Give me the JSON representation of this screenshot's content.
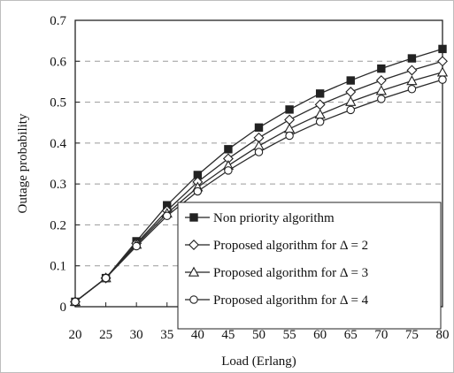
{
  "chart_data": {
    "type": "line",
    "title": "",
    "xlabel": "Load (Erlang)",
    "ylabel": "Outage probability",
    "x": [
      20,
      25,
      30,
      35,
      40,
      45,
      50,
      55,
      60,
      65,
      70,
      75,
      80
    ],
    "x_ticks": [
      "20",
      "25",
      "30",
      "35",
      "40",
      "45",
      "50",
      "55",
      "60",
      "65",
      "70",
      "75",
      "80"
    ],
    "y_ticks": [
      "0",
      "0.1",
      "0.2",
      "0.3",
      "0.4",
      "0.5",
      "0.6",
      "0.7"
    ],
    "xlim": [
      20,
      80
    ],
    "ylim": [
      0,
      0.7
    ],
    "grid": "horizontal-dashed",
    "legend_position": "bottom-right",
    "series": [
      {
        "name": "Non priority algorithm",
        "marker": "filled-square",
        "values": [
          0.012,
          0.07,
          0.16,
          0.248,
          0.322,
          0.385,
          0.438,
          0.482,
          0.521,
          0.553,
          0.582,
          0.607,
          0.63
        ]
      },
      {
        "name": "Proposed algorithm for  Δ = 2",
        "marker": "diamond",
        "values": [
          0.012,
          0.07,
          0.155,
          0.235,
          0.305,
          0.362,
          0.413,
          0.457,
          0.494,
          0.525,
          0.553,
          0.578,
          0.6
        ]
      },
      {
        "name": "Proposed algorithm for  Δ = 3",
        "marker": "triangle",
        "values": [
          0.012,
          0.07,
          0.152,
          0.228,
          0.292,
          0.345,
          0.393,
          0.435,
          0.47,
          0.501,
          0.528,
          0.552,
          0.573
        ]
      },
      {
        "name": "Proposed algorithm for  Δ = 4",
        "marker": "circle",
        "values": [
          0.012,
          0.07,
          0.148,
          0.222,
          0.282,
          0.333,
          0.378,
          0.418,
          0.452,
          0.481,
          0.508,
          0.532,
          0.555
        ]
      }
    ]
  }
}
